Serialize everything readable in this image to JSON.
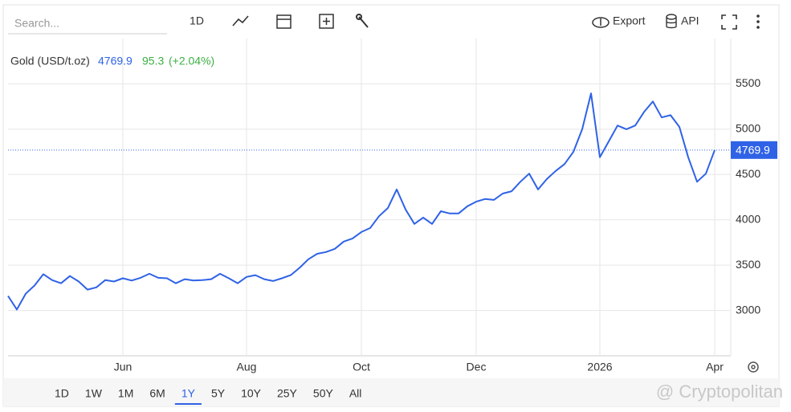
{
  "ui": {
    "search_placeholder": "Search...",
    "toolbar_period": "1D",
    "export": "Export",
    "api": "API",
    "ranges": [
      "1D",
      "1W",
      "1M",
      "6M",
      "1Y",
      "5Y",
      "10Y",
      "25Y",
      "50Y",
      "All"
    ],
    "selected_range": 4,
    "watermark": "@ Cryptopolitan",
    "change": 95.3,
    "change_pct": {
      "value": 2.04,
      "label": "(+2.04%)"
    }
  },
  "chart_data": {
    "type": "line",
    "categories": [
      null,
      null,
      null,
      null,
      null,
      null,
      null,
      null,
      null,
      null,
      null,
      null,
      null,
      "Jun",
      null,
      null,
      null,
      null,
      null,
      null,
      null,
      null,
      null,
      null,
      null,
      null,
      null,
      "Aug",
      null,
      null,
      null,
      null,
      null,
      null,
      null,
      null,
      null,
      null,
      null,
      null,
      "Oct",
      null,
      null,
      null,
      null,
      null,
      null,
      null,
      null,
      null,
      null,
      null,
      null,
      "Dec",
      null,
      null,
      null,
      null,
      null,
      null,
      null,
      null,
      null,
      null,
      null,
      null,
      null,
      "2026",
      null,
      null,
      null,
      null,
      null,
      null,
      null,
      null,
      null,
      null,
      null,
      null,
      "Apr"
    ],
    "series": [
      {
        "name": "Gold (USD/t.oz)",
        "color": "#2f62e6",
        "values": [
          3160,
          3010,
          3185,
          3275,
          3400,
          3335,
          3300,
          3380,
          3320,
          3230,
          3255,
          3335,
          3320,
          3355,
          3330,
          3360,
          3405,
          3360,
          3355,
          3300,
          3345,
          3330,
          3335,
          3345,
          3405,
          3355,
          3300,
          3370,
          3390,
          3345,
          3325,
          3355,
          3390,
          3470,
          3565,
          3625,
          3645,
          3680,
          3760,
          3795,
          3865,
          3910,
          4040,
          4130,
          4335,
          4115,
          3955,
          4025,
          3955,
          4095,
          4070,
          4070,
          4150,
          4200,
          4230,
          4220,
          4290,
          4315,
          4420,
          4510,
          4335,
          4450,
          4540,
          4615,
          4750,
          5000,
          5395,
          4690,
          4865,
          5040,
          5000,
          5040,
          5190,
          5305,
          5130,
          5155,
          5025,
          4690,
          4420,
          4510,
          4769.9
        ]
      }
    ],
    "ylim": [
      2500,
      6000
    ],
    "yticks": [
      3000,
      3500,
      4000,
      4500,
      5000,
      5500
    ],
    "grid": true,
    "last_value_line": true
  }
}
